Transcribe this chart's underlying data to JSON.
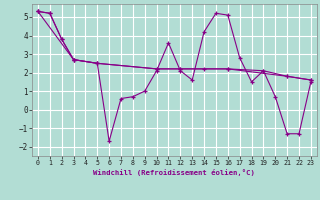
{
  "xlabel": "Windchill (Refroidissement éolien,°C)",
  "background_color": "#b2ddd4",
  "grid_color": "#ffffff",
  "line_color": "#880088",
  "xlim": [
    -0.5,
    23.5
  ],
  "ylim": [
    -2.5,
    5.7
  ],
  "yticks": [
    -2,
    -1,
    0,
    1,
    2,
    3,
    4,
    5
  ],
  "xticks": [
    0,
    1,
    2,
    3,
    4,
    5,
    6,
    7,
    8,
    9,
    10,
    11,
    12,
    13,
    14,
    15,
    16,
    17,
    18,
    19,
    20,
    21,
    22,
    23
  ],
  "series": [
    {
      "x": [
        0,
        1,
        2,
        3,
        5,
        6,
        7,
        8,
        9,
        10,
        11,
        12,
        13,
        14,
        15,
        16,
        17,
        18,
        19,
        20,
        21,
        22,
        23
      ],
      "y": [
        5.3,
        5.2,
        3.8,
        2.7,
        2.5,
        -1.7,
        0.6,
        0.7,
        1.0,
        2.1,
        3.6,
        2.1,
        1.6,
        4.2,
        5.2,
        5.1,
        2.8,
        1.5,
        2.1,
        0.7,
        -1.3,
        -1.3,
        1.5
      ]
    },
    {
      "x": [
        0,
        1,
        2,
        3,
        5,
        10,
        12,
        14,
        16,
        19,
        21,
        23
      ],
      "y": [
        5.3,
        5.2,
        3.8,
        2.7,
        2.5,
        2.2,
        2.2,
        2.2,
        2.2,
        2.1,
        1.8,
        1.6
      ]
    },
    {
      "x": [
        0,
        3,
        5,
        10,
        12,
        16,
        21,
        23
      ],
      "y": [
        5.3,
        2.7,
        2.5,
        2.2,
        2.2,
        2.2,
        1.8,
        1.6
      ]
    }
  ]
}
